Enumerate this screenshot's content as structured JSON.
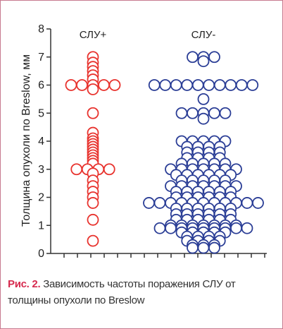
{
  "chart_data": {
    "type": "scatter",
    "ylabel": "Толщина опухоли по Breslow, мм",
    "ylim": [
      0,
      8
    ],
    "yticks": [
      "0",
      "1",
      "2",
      "3",
      "4",
      "5",
      "6",
      "7",
      "8"
    ],
    "grid": false,
    "series": [
      {
        "name": "СЛУ+",
        "color": "#e8332e",
        "marker": "open-circle",
        "values": [
          7.0,
          6.8,
          6.65,
          6.5,
          6.35,
          6.2,
          6.0,
          6.0,
          6.0,
          6.0,
          6.0,
          5.85,
          5.0,
          4.3,
          4.1,
          4.0,
          3.9,
          3.8,
          3.7,
          3.6,
          3.5,
          3.4,
          3.3,
          3.2,
          3.0,
          3.0,
          3.0,
          3.0,
          2.85,
          2.6,
          2.4,
          2.2,
          2.0,
          1.8,
          1.2,
          0.45
        ]
      },
      {
        "name": "СЛУ-",
        "color": "#2b3e96",
        "marker": "open-circle",
        "values": [
          7.0,
          7.0,
          7.0,
          6.85,
          6.0,
          6.0,
          6.0,
          6.0,
          6.0,
          6.0,
          6.0,
          6.0,
          6.0,
          6.0,
          5.5,
          5.0,
          5.0,
          5.0,
          5.0,
          5.0,
          4.8,
          4.0,
          4.0,
          4.0,
          4.0,
          4.0,
          3.8,
          3.8,
          3.8,
          3.8,
          3.6,
          3.6,
          3.6,
          3.6,
          3.4,
          3.4,
          3.4,
          3.4,
          3.2,
          3.2,
          3.2,
          3.2,
          3.2,
          3.0,
          3.0,
          3.0,
          3.0,
          3.0,
          3.0,
          3.0,
          2.8,
          2.8,
          2.8,
          2.8,
          2.8,
          2.8,
          2.6,
          2.6,
          2.6,
          2.6,
          2.6,
          2.4,
          2.4,
          2.4,
          2.4,
          2.4,
          2.4,
          2.4,
          2.2,
          2.2,
          2.2,
          2.2,
          2.2,
          2.2,
          2.0,
          2.0,
          2.0,
          2.0,
          2.0,
          2.0,
          1.8,
          1.8,
          1.8,
          1.8,
          1.8,
          1.8,
          1.8,
          1.8,
          1.8,
          1.8,
          1.8,
          1.6,
          1.6,
          1.6,
          1.6,
          1.6,
          1.6,
          1.4,
          1.4,
          1.4,
          1.4,
          1.4,
          1.4,
          1.2,
          1.2,
          1.2,
          1.2,
          1.2,
          1.2,
          1.0,
          1.0,
          1.0,
          1.0,
          1.0,
          1.0,
          1.0,
          0.9,
          0.9,
          0.9,
          0.9,
          0.9,
          0.9,
          0.9,
          0.9,
          0.9,
          0.75,
          0.75,
          0.75,
          0.75,
          0.75,
          0.6,
          0.6,
          0.6,
          0.6,
          0.45,
          0.45,
          0.45,
          0.45,
          0.3,
          0.3,
          0.3,
          0.2,
          0.2,
          0.2
        ]
      }
    ]
  },
  "caption": {
    "label": "Рис. 2.",
    "text": " Зависимость частоты пораже­ния СЛУ от толщины опухоли по Breslow"
  },
  "colors": {
    "frame": "#c77a8f",
    "caption_label": "#d62a4e",
    "axis": "#333333"
  }
}
